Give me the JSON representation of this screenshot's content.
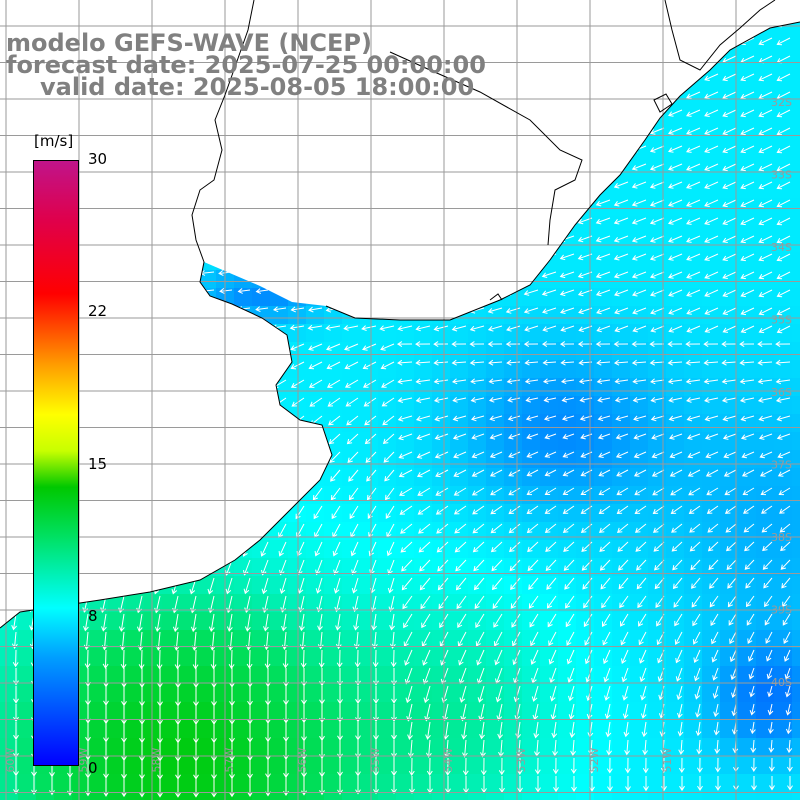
{
  "title": {
    "line1": "modelo GEFS-WAVE (NCEP)",
    "line2": "forecast date: 2025-07-25 00:00:00",
    "line3": "valid date: 2025-08-05 18:00:00"
  },
  "colorbar": {
    "unit": "[m/s]",
    "ticks": [
      {
        "value": 30,
        "label": "30"
      },
      {
        "value": 22,
        "label": "22"
      },
      {
        "value": 15,
        "label": "15"
      },
      {
        "value": 8,
        "label": "8"
      },
      {
        "value": 0,
        "label": "0"
      }
    ],
    "min": 0,
    "max": 30
  },
  "map": {
    "lat_labels": [
      "32S",
      "33S",
      "34S",
      "35S",
      "36S",
      "37S",
      "38S",
      "39S",
      "40S"
    ],
    "lon_labels": [
      "60W",
      "59W",
      "58W",
      "57W",
      "56W",
      "55W",
      "54W",
      "53W",
      "52W",
      "51W"
    ],
    "land_color": "#ffffff",
    "grid_color": "#9a9a9a",
    "vector_color": "#ffffff"
  }
}
